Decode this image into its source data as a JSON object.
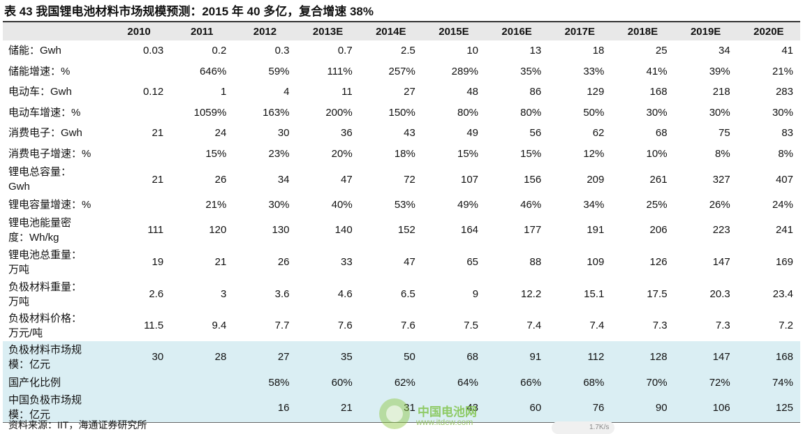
{
  "header": {
    "title": "表 43 我国锂电池材料市场规模预测：2015 年 40 多亿，复合增速 38%"
  },
  "table": {
    "columns": [
      "2010",
      "2011",
      "2012",
      "2013E",
      "2014E",
      "2015E",
      "2016E",
      "2017E",
      "2018E",
      "2019E",
      "2020E"
    ],
    "rows": [
      {
        "label": "储能：Gwh",
        "values": [
          "0.03",
          "0.2",
          "0.3",
          "0.7",
          "2.5",
          "10",
          "13",
          "18",
          "25",
          "34",
          "41"
        ]
      },
      {
        "label": "储能增速：%",
        "values": [
          null,
          "646%",
          "59%",
          "111%",
          "257%",
          "289%",
          "35%",
          "33%",
          "41%",
          "39%",
          "21%"
        ]
      },
      {
        "label": "电动车：Gwh",
        "values": [
          "0.12",
          "1",
          "4",
          "11",
          "27",
          "48",
          "86",
          "129",
          "168",
          "218",
          "283"
        ]
      },
      {
        "label": "电动车增速：%",
        "values": [
          null,
          "1059%",
          "163%",
          "200%",
          "150%",
          "80%",
          "80%",
          "50%",
          "30%",
          "30%",
          "30%"
        ]
      },
      {
        "label": "消费电子：Gwh",
        "values": [
          "21",
          "24",
          "30",
          "36",
          "43",
          "49",
          "56",
          "62",
          "68",
          "75",
          "83"
        ]
      },
      {
        "label": "消费电子增速：%",
        "values": [
          null,
          "15%",
          "23%",
          "20%",
          "18%",
          "15%",
          "15%",
          "12%",
          "10%",
          "8%",
          "8%"
        ]
      },
      {
        "label": "锂电总容量：\nGwh",
        "values": [
          "21",
          "26",
          "34",
          "47",
          "72",
          "107",
          "156",
          "209",
          "261",
          "327",
          "407"
        ]
      },
      {
        "label": "锂电容量增速：%",
        "values": [
          null,
          "21%",
          "30%",
          "40%",
          "53%",
          "49%",
          "46%",
          "34%",
          "25%",
          "26%",
          "24%"
        ]
      },
      {
        "label": "锂电池能量密\n度：Wh/kg",
        "values": [
          "111",
          "120",
          "130",
          "140",
          "152",
          "164",
          "177",
          "191",
          "206",
          "223",
          "241"
        ]
      },
      {
        "label": "锂电池总重量：\n万吨",
        "values": [
          "19",
          "21",
          "26",
          "33",
          "47",
          "65",
          "88",
          "109",
          "126",
          "147",
          "169"
        ]
      },
      {
        "label": "负极材料重量：\n万吨",
        "values": [
          "2.6",
          "3",
          "3.6",
          "4.6",
          "6.5",
          "9",
          "12.2",
          "15.1",
          "17.5",
          "20.3",
          "23.4"
        ]
      },
      {
        "label": "负极材料价格：\n万元/吨",
        "values": [
          "11.5",
          "9.4",
          "7.7",
          "7.6",
          "7.6",
          "7.5",
          "7.4",
          "7.4",
          "7.3",
          "7.3",
          "7.2"
        ]
      },
      {
        "label": "负极材料市场规\n模：亿元",
        "values": [
          "30",
          "28",
          "27",
          "35",
          "50",
          "68",
          "91",
          "112",
          "128",
          "147",
          "168"
        ],
        "shade": "#daeef3"
      },
      {
        "label": "国产化比例",
        "values": [
          null,
          null,
          "58%",
          "60%",
          "62%",
          "64%",
          "66%",
          "68%",
          "70%",
          "72%",
          "74%"
        ],
        "shade": "#daeef3"
      },
      {
        "label": "中国负极市场规模：亿元",
        "values": [
          null,
          null,
          "16",
          "21",
          "31",
          "43",
          "60",
          "76",
          "90",
          "106",
          "125"
        ],
        "shade": "#daeef3"
      }
    ]
  },
  "footer": {
    "source": "资料来源：IIT，海通证券研究所"
  },
  "watermark": {
    "name": "中国电池网",
    "url": "www.itdcw.com",
    "speed": "1.7K/s"
  }
}
